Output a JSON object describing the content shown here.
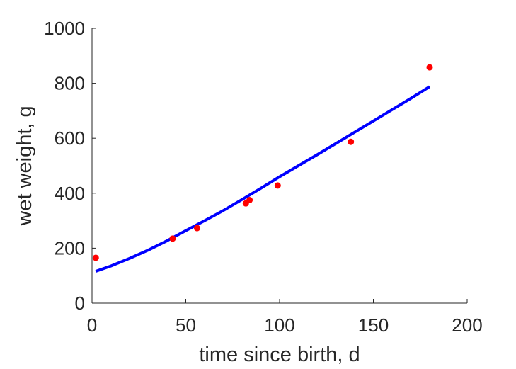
{
  "chart_data": {
    "type": "scatter",
    "title": "",
    "xlabel": "time since birth, d",
    "ylabel": "wet weight, g",
    "xlim": [
      0,
      200
    ],
    "ylim": [
      0,
      1000
    ],
    "xticks": [
      0,
      50,
      100,
      150,
      200
    ],
    "yticks": [
      0,
      200,
      400,
      600,
      800,
      1000
    ],
    "grid": false,
    "legend": "none",
    "series": [
      {
        "kind": "points",
        "color": "#ff0000",
        "x": [
          2,
          43,
          56,
          82,
          84,
          99,
          138,
          180
        ],
        "y": [
          165,
          235,
          273,
          363,
          375,
          428,
          587,
          858
        ]
      },
      {
        "kind": "line",
        "color": "#0000ff",
        "x": [
          2,
          10,
          20,
          30,
          40,
          50,
          60,
          70,
          80,
          90,
          100,
          110,
          120,
          130,
          140,
          150,
          160,
          170,
          180
        ],
        "y": [
          116,
          135,
          163,
          193,
          227,
          264,
          300,
          337,
          377,
          418,
          460,
          500,
          540,
          581,
          622,
          663,
          704,
          745,
          788
        ]
      }
    ]
  }
}
